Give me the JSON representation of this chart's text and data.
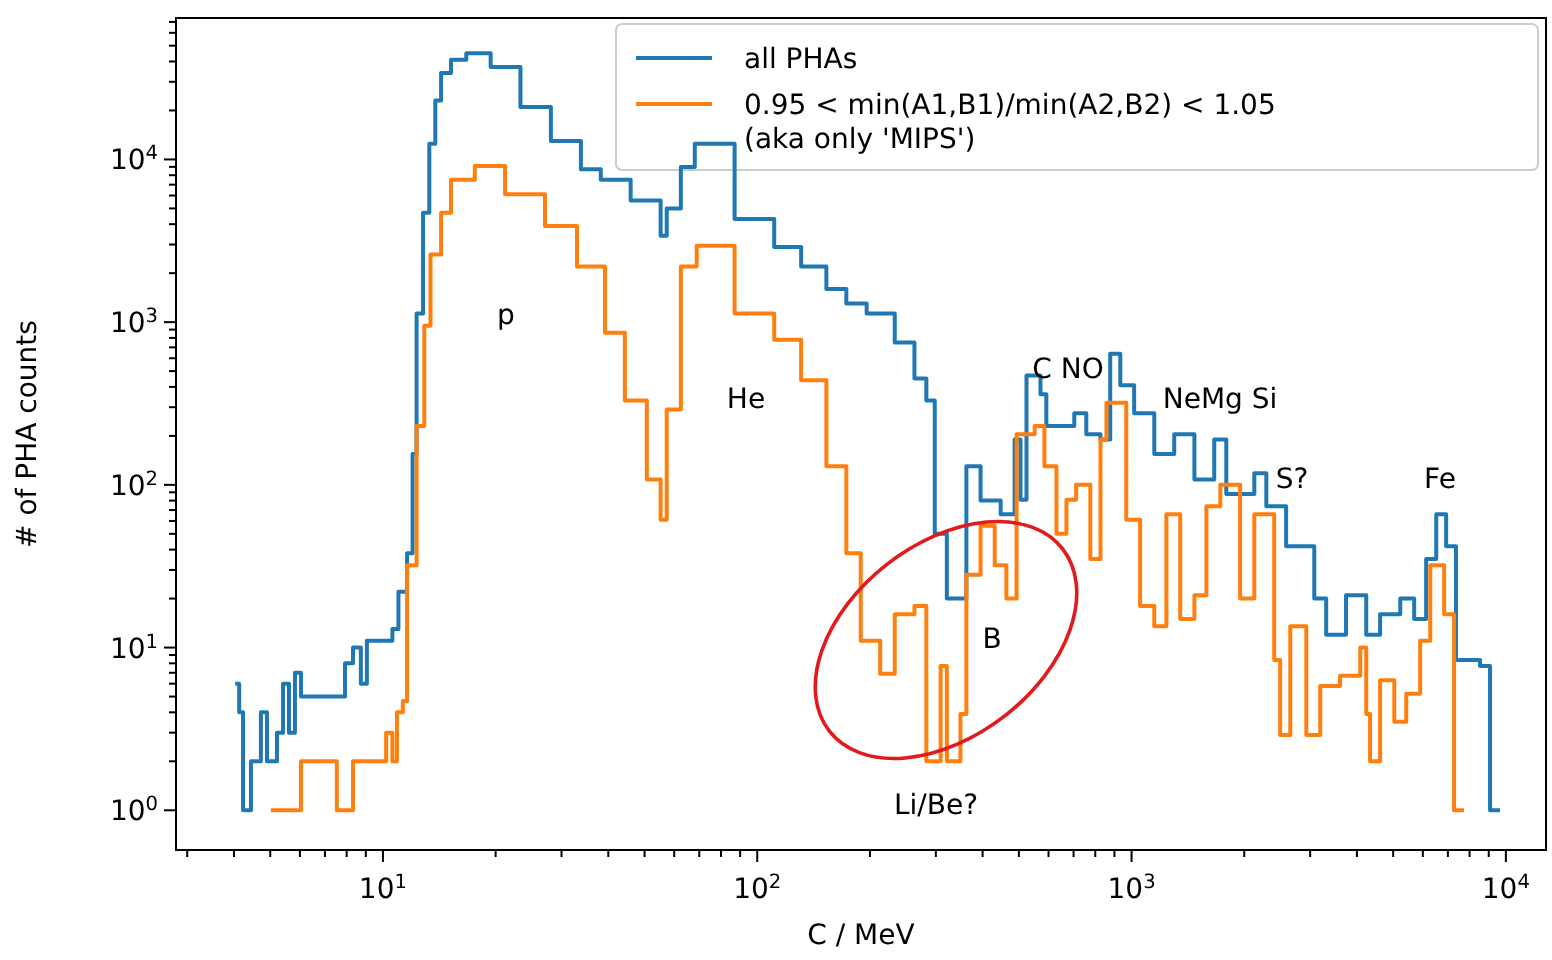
{
  "chart_data": {
    "type": "step",
    "xlabel": "C / MeV",
    "ylabel": "# of PHA counts",
    "log": "xy",
    "legend": "top right",
    "grid": false,
    "xlim": [
      2.8,
      12800
    ],
    "ylim": [
      0.57,
      74000
    ],
    "xticks": [
      {
        "value": 3,
        "label": null
      },
      {
        "value": 4,
        "label": null
      },
      {
        "value": 5,
        "label": null
      },
      {
        "value": 6,
        "label": null
      },
      {
        "value": 7,
        "label": null
      },
      {
        "value": 8,
        "label": null
      },
      {
        "value": 9,
        "label": null
      },
      {
        "value": 10,
        "label": "10$^{1}$"
      },
      {
        "value": 20,
        "label": null
      },
      {
        "value": 30,
        "label": null
      },
      {
        "value": 40,
        "label": null
      },
      {
        "value": 50,
        "label": null
      },
      {
        "value": 60,
        "label": null
      },
      {
        "value": 70,
        "label": null
      },
      {
        "value": 80,
        "label": null
      },
      {
        "value": 90,
        "label": null
      },
      {
        "value": 100,
        "label": "10$^{2}$"
      },
      {
        "value": 200,
        "label": null
      },
      {
        "value": 300,
        "label": null
      },
      {
        "value": 400,
        "label": null
      },
      {
        "value": 500,
        "label": null
      },
      {
        "value": 600,
        "label": null
      },
      {
        "value": 700,
        "label": null
      },
      {
        "value": 800,
        "label": null
      },
      {
        "value": 900,
        "label": null
      },
      {
        "value": 1000,
        "label": "10$^{3}$"
      },
      {
        "value": 2000,
        "label": null
      },
      {
        "value": 3000,
        "label": null
      },
      {
        "value": 4000,
        "label": null
      },
      {
        "value": 5000,
        "label": null
      },
      {
        "value": 6000,
        "label": null
      },
      {
        "value": 7000,
        "label": null
      },
      {
        "value": 8000,
        "label": null
      },
      {
        "value": 9000,
        "label": null
      },
      {
        "value": 10000,
        "label": "10$^{4}$"
      }
    ],
    "yticks": [
      {
        "value": 1,
        "label": "10$^{0}$"
      },
      {
        "value": 2,
        "label": null
      },
      {
        "value": 3,
        "label": null
      },
      {
        "value": 4,
        "label": null
      },
      {
        "value": 5,
        "label": null
      },
      {
        "value": 6,
        "label": null
      },
      {
        "value": 7,
        "label": null
      },
      {
        "value": 8,
        "label": null
      },
      {
        "value": 9,
        "label": null
      },
      {
        "value": 10,
        "label": "10$^{1}$"
      },
      {
        "value": 20,
        "label": null
      },
      {
        "value": 30,
        "label": null
      },
      {
        "value": 40,
        "label": null
      },
      {
        "value": 50,
        "label": null
      },
      {
        "value": 60,
        "label": null
      },
      {
        "value": 70,
        "label": null
      },
      {
        "value": 80,
        "label": null
      },
      {
        "value": 90,
        "label": null
      },
      {
        "value": 100,
        "label": "10$^{2}$"
      },
      {
        "value": 200,
        "label": null
      },
      {
        "value": 300,
        "label": null
      },
      {
        "value": 400,
        "label": null
      },
      {
        "value": 500,
        "label": null
      },
      {
        "value": 600,
        "label": null
      },
      {
        "value": 700,
        "label": null
      },
      {
        "value": 800,
        "label": null
      },
      {
        "value": 900,
        "label": null
      },
      {
        "value": 1000,
        "label": "10$^{3}$"
      },
      {
        "value": 2000,
        "label": null
      },
      {
        "value": 3000,
        "label": null
      },
      {
        "value": 4000,
        "label": null
      },
      {
        "value": 5000,
        "label": null
      },
      {
        "value": 6000,
        "label": null
      },
      {
        "value": 7000,
        "label": null
      },
      {
        "value": 8000,
        "label": null
      },
      {
        "value": 9000,
        "label": null
      },
      {
        "value": 10000,
        "label": "10$^{4}$"
      },
      {
        "value": 20000,
        "label": null
      },
      {
        "value": 30000,
        "label": null
      },
      {
        "value": 40000,
        "label": null
      },
      {
        "value": 50000,
        "label": null
      },
      {
        "value": 60000,
        "label": null
      },
      {
        "value": 70000,
        "label": null
      }
    ],
    "series": [
      {
        "name": "all PHAs",
        "color": "#1f77b4",
        "x": [
          4.03,
          4.13,
          4.23,
          4.44,
          4.72,
          4.9,
          5.21,
          5.41,
          5.61,
          5.82,
          6.04,
          6.42,
          7.26,
          7.92,
          8.32,
          8.73,
          9.06,
          9.88,
          10.6,
          11.0,
          11.6,
          12.0,
          12.3,
          12.8,
          13.3,
          13.8,
          14.3,
          15.2,
          16.7,
          19.4,
          23.3,
          28.1,
          33.8,
          38.2,
          45.9,
          55.2,
          57.3,
          62.5,
          68.1,
          87,
          111,
          131,
          153,
          173,
          196,
          233,
          263,
          283,
          298,
          321,
          362,
          395,
          447,
          487,
          505,
          524,
          571,
          592,
          703,
          757,
          826,
          877,
          933,
          1016,
          1150,
          1300,
          1472,
          1663,
          1791,
          2128,
          2291,
          2588,
          3077,
          3311,
          3741,
          4236,
          4613,
          5222,
          5689,
          6124,
          6516,
          6925,
          7357,
          8531,
          9073,
          9649
        ],
        "values": [
          6,
          4,
          1,
          2,
          4,
          2,
          3,
          6,
          3,
          7,
          5,
          5,
          5,
          8,
          10,
          6,
          11,
          11,
          13,
          22,
          38,
          155,
          1130,
          4700,
          12500,
          23000,
          34000,
          41000,
          45000,
          37000,
          21000,
          13000,
          8700,
          7500,
          5600,
          3400,
          5000,
          9000,
          12500,
          4300,
          2900,
          2200,
          1600,
          1300,
          1130,
          750,
          450,
          330,
          50,
          20,
          130,
          80,
          66,
          190,
          81,
          470,
          360,
          230,
          275,
          205,
          190,
          640,
          410,
          275,
          155,
          205,
          108,
          190,
          88,
          118,
          74,
          42,
          20,
          12,
          21,
          12,
          16,
          20,
          15,
          35,
          66,
          42,
          8.4,
          7.7,
          1,
          1
        ]
      },
      {
        "name": "0.95 < min(A1,B1)/min(A2,B2) < 1.05\n(aka only 'MIPS')",
        "color": "#ff7f0e",
        "x": [
          5.02,
          6.04,
          7.53,
          8.32,
          10.2,
          10.6,
          10.9,
          11.3,
          11.6,
          12.3,
          12.9,
          13.4,
          14.3,
          15.2,
          17.6,
          21.2,
          27.1,
          33,
          39.2,
          44.3,
          50.7,
          55.2,
          57.3,
          62.5,
          68.9,
          87,
          111,
          131,
          153,
          173,
          189,
          213,
          233,
          263,
          283,
          309,
          321,
          349,
          362,
          395,
          431,
          463,
          493,
          551,
          585,
          630,
          670,
          711,
          776,
          826,
          857,
          968,
          1054,
          1150,
          1239,
          1349,
          1472,
          1585,
          1726,
          1950,
          2128,
          2405,
          2495,
          2655,
          2930,
          3192,
          3606,
          4083,
          4236,
          4337,
          4613,
          5035,
          5418,
          5902,
          6281,
          6840,
          7271,
          7730
        ],
        "values": [
          1,
          2,
          1,
          2,
          3,
          2,
          4,
          4.7,
          32,
          230,
          950,
          2600,
          4700,
          7500,
          9100,
          6100,
          3900,
          2200,
          860,
          330,
          108,
          61,
          290,
          2200,
          2950,
          1130,
          780,
          440,
          130,
          38,
          11,
          6.9,
          16,
          18,
          2,
          7.7,
          2,
          3.9,
          28,
          56,
          32,
          20,
          205,
          230,
          130,
          50,
          81,
          100,
          35,
          190,
          320,
          61,
          18,
          13.5,
          66,
          15,
          21,
          74,
          100,
          20,
          66,
          8.4,
          2.9,
          13.5,
          2.9,
          5.8,
          6.7,
          10,
          3.9,
          2,
          6.3,
          3.5,
          5.2,
          11,
          32,
          16,
          1,
          1
        ]
      }
    ],
    "annotations": [
      "p",
      "He",
      "C NO",
      "NeMg Si",
      "S?",
      "Fe",
      "B",
      "Li/Be?"
    ]
  }
}
